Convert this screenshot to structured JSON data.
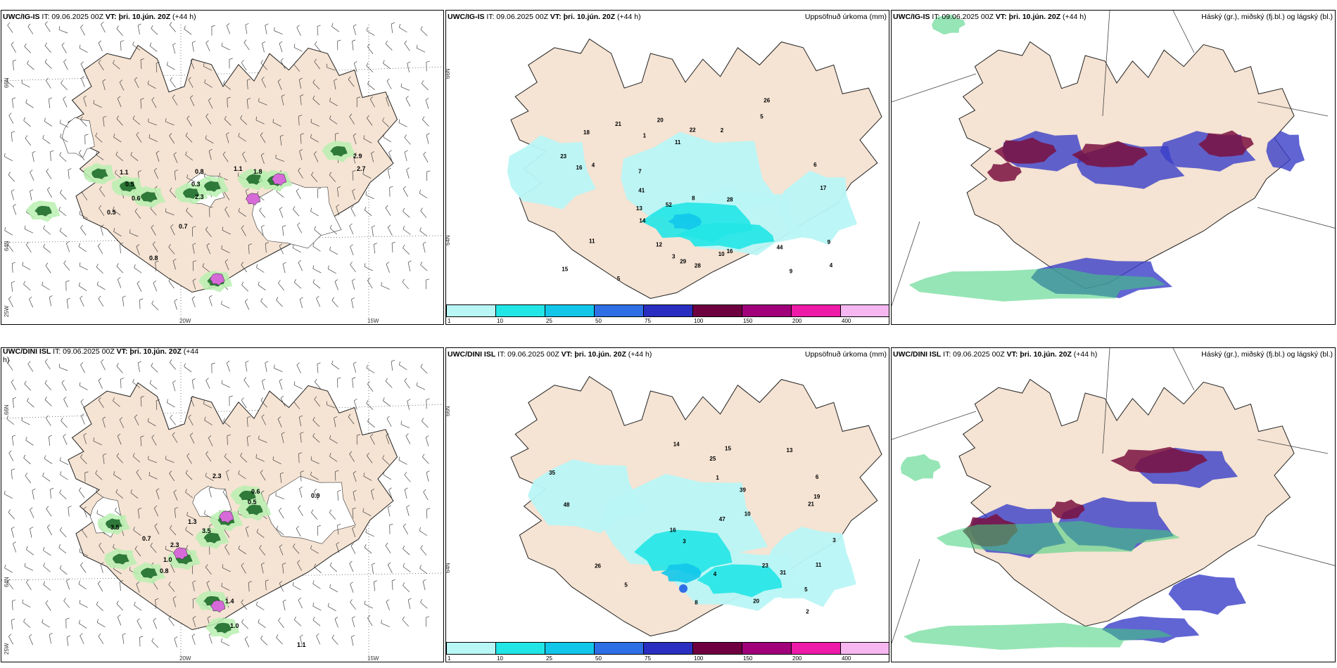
{
  "colors": {
    "land": "#f5e3d3",
    "precip_scale": [
      "#b9f6f6",
      "#22e6e6",
      "#12c6ea",
      "#2f6fe6",
      "#2a2ec0",
      "#6e0040",
      "#a0007a",
      "#ee1aa8",
      "#f6b6f0"
    ],
    "cloud_high": "#3fd07a",
    "cloud_mid": "#7a1040",
    "cloud_low": "#3a3ec8"
  },
  "rows": [
    {
      "model": "UWC/IG-IS",
      "wind_panel": {
        "prefix": "UWC/IG-IS",
        "meta": "IT: 09.06.2025 00Z",
        "vt_label": "VT:",
        "vt": "þri. 10.jún. 20Z",
        "lead": "(+44 h)"
      },
      "precip_panel": {
        "prefix": "UWC/IG-IS",
        "meta": "IT: 09.06.2025 00Z",
        "vt_label": "VT:",
        "vt": "þri. 10.jún. 20Z",
        "lead": "(+44 h)",
        "right_title": "Uppsöfnuð úrkoma (mm)"
      },
      "cloud_panel": {
        "prefix": "UWC/IG-IS",
        "meta": "IT: 09.06.2025 00Z",
        "vt_label": "VT:",
        "vt": "þri. 10.jún. 20Z",
        "lead": "(+44 h)",
        "right_title": "Háský (gr.), miðský (fj.bl.) og lágský (bl.)"
      },
      "wind_values": [
        "1.1",
        "0.5",
        "0.6",
        "0.8",
        "1.1",
        "2.3",
        "0.7",
        "0.8",
        "2.9",
        "2.7",
        "1.8",
        "0.3",
        "0.5"
      ],
      "precip_values": [
        "4",
        "3",
        "5",
        "8",
        "10",
        "7",
        "4",
        "9",
        "6",
        "18",
        "14",
        "20",
        "16",
        "21",
        "28",
        "44",
        "52",
        "29",
        "23",
        "41",
        "22",
        "17",
        "15",
        "12",
        "11",
        "13",
        "9",
        "28",
        "26",
        "16",
        "11",
        "2",
        "1",
        "5"
      ]
    },
    {
      "model": "UWC/DINI ISL",
      "wind_panel": {
        "prefix": "UWC/DINI ISL",
        "meta": "IT: 09.06.2025 00Z",
        "vt_label": "VT:",
        "vt": "þri. 10.jún. 20Z",
        "lead": "(+44 h)"
      },
      "precip_panel": {
        "prefix": "UWC/DINI ISL",
        "meta": "IT: 09.06.2025 00Z",
        "vt_label": "VT:",
        "vt": "þri. 10.jún. 20Z",
        "lead": "(+44 h)",
        "right_title": "Uppsöfnuð úrkoma (mm)"
      },
      "cloud_panel": {
        "prefix": "UWC/DINI ISL",
        "meta": "IT: 09.06.2025 00Z",
        "vt_label": "VT:",
        "vt": "þri. 10.jún. 20Z",
        "lead": "(+44 h)",
        "right_title": "Háský (gr.), miðský (fj.bl.) og lágský (bl.)"
      },
      "wind_values": [
        "3.5",
        "2.3",
        "0.6",
        "0.9",
        "0.5",
        "3.5",
        "1.3",
        "0.7",
        "2.3",
        "1.0",
        "0.8",
        "1.4",
        "1.0",
        "1.1"
      ],
      "precip_values": [
        "2",
        "3",
        "5",
        "4",
        "6",
        "10",
        "8",
        "16",
        "20",
        "31",
        "48",
        "39",
        "47",
        "25",
        "19",
        "13",
        "14",
        "35",
        "26",
        "23",
        "11",
        "15",
        "21",
        "5",
        "3",
        "1"
      ]
    }
  ],
  "axis": {
    "lat_66": "66N",
    "lat_64": "64N",
    "lat_65": "65N",
    "lon_20": "20W",
    "lon_15": "15W",
    "lon_25": "25W"
  },
  "colorbar_labels": [
    "1",
    "10",
    "25",
    "50",
    "75",
    "100",
    "150",
    "200",
    "400"
  ]
}
